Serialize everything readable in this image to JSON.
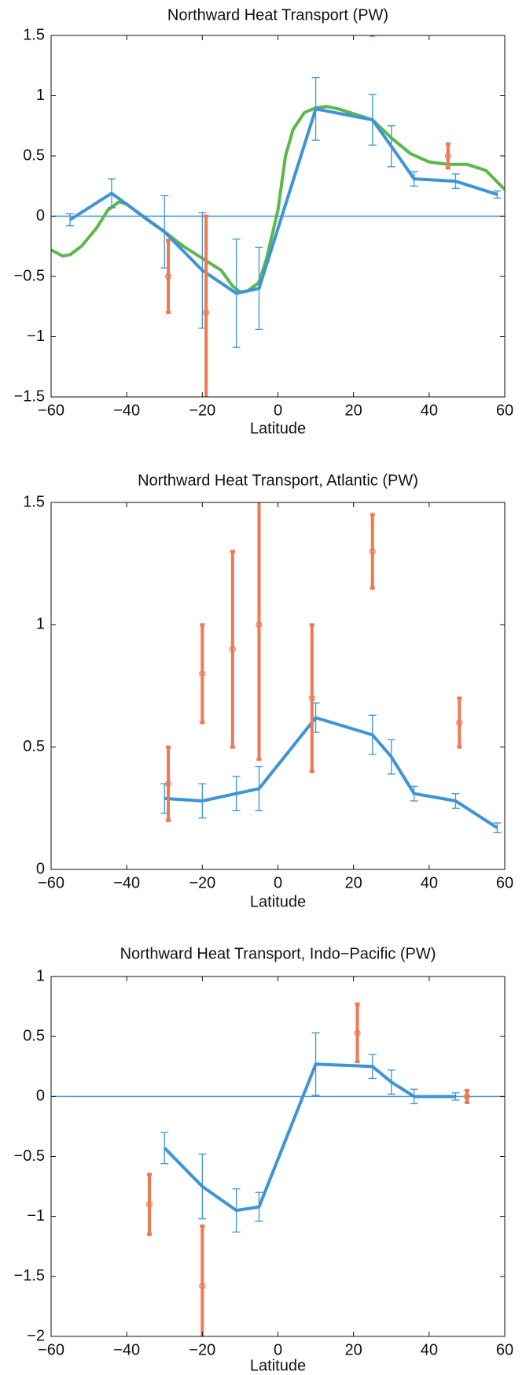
{
  "chart_data": [
    {
      "type": "line",
      "title": "Northward Heat Transport (PW)",
      "xlabel": "Latitude",
      "xlim": [
        -60,
        60
      ],
      "ylim": [
        -1.5,
        1.5
      ],
      "xticks": [
        {
          "value": -60,
          "label": "−60"
        },
        {
          "value": -40,
          "label": "−40"
        },
        {
          "value": -20,
          "label": "−20"
        },
        0,
        20,
        40,
        60
      ],
      "yticks": [
        {
          "value": -1.5,
          "label": "−1.5"
        },
        {
          "value": -1,
          "label": "−1"
        },
        {
          "value": -0.5,
          "label": "−0.5"
        },
        0,
        0.5,
        1,
        1.5
      ],
      "hline": 0,
      "hline_color": "#3d94d6",
      "grid": false,
      "series": [
        {
          "color": "#5cb848",
          "line": true,
          "marker": "none",
          "x": [
            -60,
            -57,
            -55,
            -52,
            -48,
            -45,
            -42,
            -40,
            -35,
            -30,
            -25,
            -20,
            -15,
            -12,
            -10,
            -8,
            -5,
            -3,
            0,
            2,
            4,
            7,
            10,
            13,
            16,
            20,
            25,
            30,
            35,
            40,
            45,
            50,
            55,
            60
          ],
          "values": [
            -0.28,
            -0.33,
            -0.32,
            -0.25,
            -0.1,
            0.05,
            0.12,
            0.1,
            -0.02,
            -0.13,
            -0.25,
            -0.35,
            -0.45,
            -0.58,
            -0.63,
            -0.62,
            -0.55,
            -0.35,
            0.05,
            0.5,
            0.72,
            0.86,
            0.9,
            0.91,
            0.89,
            0.85,
            0.8,
            0.65,
            0.52,
            0.45,
            0.43,
            0.43,
            0.38,
            0.22
          ]
        },
        {
          "color": "#3d94d6",
          "line": true,
          "marker": "none",
          "x": [
            -55,
            -44,
            -30,
            -20,
            -11,
            -5,
            10,
            25,
            30,
            36,
            47,
            58
          ],
          "values": [
            -0.03,
            0.19,
            -0.13,
            -0.45,
            -0.64,
            -0.6,
            0.89,
            0.8,
            0.58,
            0.31,
            0.29,
            0.18
          ],
          "errors": [
            0.05,
            0.12,
            0.3,
            0.48,
            0.45,
            0.34,
            0.26,
            0.21,
            0.17,
            0.06,
            0.06,
            0.03
          ]
        },
        {
          "color": "#f07850",
          "line": false,
          "marker": "o",
          "x": [
            -29,
            -19,
            25,
            45
          ],
          "values": [
            -0.5,
            -0.8,
            1.65,
            0.5
          ],
          "errors": [
            0.3,
            0.8,
            0.15,
            0.1
          ]
        }
      ]
    },
    {
      "type": "line",
      "title": "Northward Heat Transport, Atlantic (PW)",
      "xlabel": "Latitude",
      "xlim": [
        -60,
        60
      ],
      "ylim": [
        0,
        1.5
      ],
      "xticks": [
        {
          "value": -60,
          "label": "−60"
        },
        {
          "value": -40,
          "label": "−40"
        },
        {
          "value": -20,
          "label": "−20"
        },
        0,
        20,
        40,
        60
      ],
      "yticks": [
        0,
        0.5,
        1,
        1.5
      ],
      "grid": false,
      "series": [
        {
          "color": "#3d94d6",
          "line": true,
          "marker": "none",
          "x": [
            -30,
            -20,
            -11,
            -5,
            10,
            25,
            30,
            36,
            47,
            58
          ],
          "values": [
            0.29,
            0.28,
            0.31,
            0.33,
            0.62,
            0.55,
            0.46,
            0.31,
            0.28,
            0.17
          ],
          "errors": [
            0.06,
            0.07,
            0.07,
            0.09,
            0.06,
            0.08,
            0.07,
            0.03,
            0.03,
            0.02
          ]
        },
        {
          "color": "#f07850",
          "line": false,
          "marker": "o",
          "x": [
            -29,
            -20,
            -12,
            -5,
            9,
            25,
            48
          ],
          "values": [
            0.35,
            0.8,
            0.9,
            1.0,
            0.7,
            1.3,
            0.6
          ],
          "errors": [
            0.15,
            0.2,
            0.4,
            0.55,
            0.3,
            0.15,
            0.1
          ]
        }
      ]
    },
    {
      "type": "line",
      "title": "Northward Heat Transport, Indo−Pacific (PW)",
      "xlabel": "Latitude",
      "xlim": [
        -60,
        60
      ],
      "ylim": [
        -2,
        1
      ],
      "xticks": [
        {
          "value": -60,
          "label": "−60"
        },
        {
          "value": -40,
          "label": "−40"
        },
        {
          "value": -20,
          "label": "−20"
        },
        0,
        20,
        40,
        60
      ],
      "yticks": [
        {
          "value": -2,
          "label": "−2"
        },
        {
          "value": -1.5,
          "label": "−1.5"
        },
        {
          "value": -1,
          "label": "−1"
        },
        {
          "value": -0.5,
          "label": "−0.5"
        },
        0,
        0.5,
        1
      ],
      "hline": 0,
      "hline_color": "#3d94d6",
      "grid": false,
      "series": [
        {
          "color": "#3d94d6",
          "line": true,
          "marker": "none",
          "x": [
            -30,
            -20,
            -11,
            -5,
            10,
            25,
            30,
            36,
            47
          ],
          "values": [
            -0.43,
            -0.75,
            -0.95,
            -0.92,
            0.27,
            0.25,
            0.12,
            0.0,
            0.0
          ],
          "errors": [
            0.13,
            0.27,
            0.18,
            0.12,
            0.26,
            0.1,
            0.1,
            0.06,
            0.03
          ]
        },
        {
          "color": "#f07850",
          "line": false,
          "marker": "o",
          "x": [
            -34,
            -20,
            21,
            50
          ],
          "values": [
            -0.9,
            -1.58,
            0.53,
            0.0
          ],
          "errors": [
            0.25,
            0.5,
            0.24,
            0.05
          ]
        }
      ]
    }
  ]
}
